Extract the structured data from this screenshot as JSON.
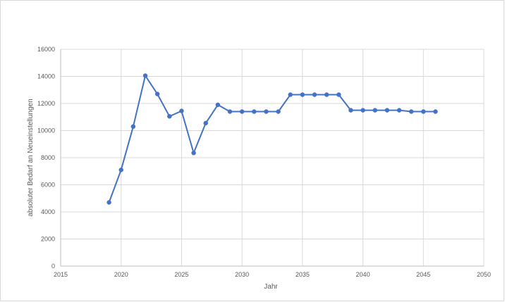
{
  "chart_data": {
    "type": "scatter",
    "title": "",
    "xlabel": "Jahr",
    "ylabel": "absoluter Bedarf an Neueinstellungen",
    "xlim": [
      2015,
      2050
    ],
    "ylim": [
      0,
      16000
    ],
    "xticks": [
      2015,
      2020,
      2025,
      2030,
      2035,
      2040,
      2045,
      2050
    ],
    "yticks": [
      0,
      2000,
      4000,
      6000,
      8000,
      10000,
      12000,
      14000,
      16000
    ],
    "grid": true,
    "legend": "none",
    "colors": {
      "series": "#4472C4",
      "grid": "#d9d9d9",
      "text": "#595959"
    },
    "series": [
      {
        "markers": true,
        "lines": true,
        "x": [
          2019,
          2020,
          2021,
          2022,
          2023,
          2024,
          2025,
          2026,
          2027,
          2028,
          2029,
          2030,
          2031,
          2032,
          2033,
          2034,
          2035,
          2036,
          2037,
          2038,
          2039,
          2040,
          2041,
          2042,
          2043,
          2044,
          2045,
          2046
        ],
        "y": [
          4700,
          7100,
          10300,
          14050,
          12700,
          11050,
          11450,
          8350,
          10550,
          11900,
          11400,
          11400,
          11400,
          11400,
          11400,
          12650,
          12650,
          12650,
          12650,
          12650,
          11500,
          11500,
          11500,
          11500,
          11500,
          11400,
          11400,
          11400
        ]
      }
    ]
  }
}
